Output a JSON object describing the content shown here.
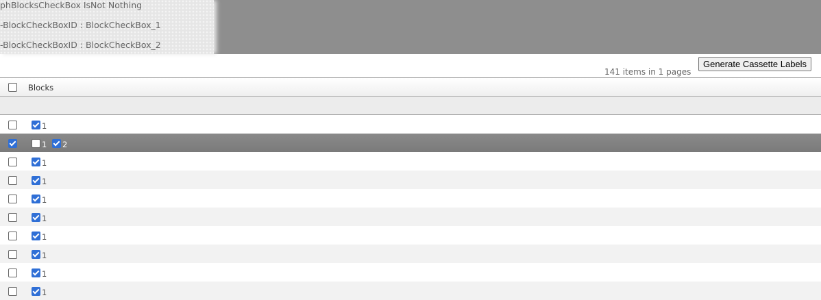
{
  "debug_lines": [
    "phBlocksCheckBox IsNot Nothing",
    "-BlockCheckBoxID : BlockCheckBox_1",
    "-BlockCheckBoxID : BlockCheckBox_2"
  ],
  "toolbar": {
    "count_text": "141 items in 1 pages",
    "generate_label": "Generate Cassette Labels"
  },
  "grid": {
    "column_header": "Blocks",
    "header_checked": false,
    "rows": [
      {
        "selected": false,
        "blocks": [
          {
            "label": "1",
            "checked": true
          }
        ]
      },
      {
        "selected": true,
        "blocks": [
          {
            "label": "1",
            "checked": false
          },
          {
            "label": "2",
            "checked": true
          }
        ]
      },
      {
        "selected": false,
        "blocks": [
          {
            "label": "1",
            "checked": true
          }
        ]
      },
      {
        "selected": false,
        "blocks": [
          {
            "label": "1",
            "checked": true
          }
        ]
      },
      {
        "selected": false,
        "blocks": [
          {
            "label": "1",
            "checked": true
          }
        ]
      },
      {
        "selected": false,
        "blocks": [
          {
            "label": "1",
            "checked": true
          }
        ]
      },
      {
        "selected": false,
        "blocks": [
          {
            "label": "1",
            "checked": true
          }
        ]
      },
      {
        "selected": false,
        "blocks": [
          {
            "label": "1",
            "checked": true
          }
        ]
      },
      {
        "selected": false,
        "blocks": [
          {
            "label": "1",
            "checked": true
          }
        ]
      },
      {
        "selected": false,
        "blocks": [
          {
            "label": "1",
            "checked": true
          }
        ]
      }
    ]
  },
  "colors": {
    "selected_row": "#808080",
    "checkbox_checked": "#2f6fd6"
  }
}
